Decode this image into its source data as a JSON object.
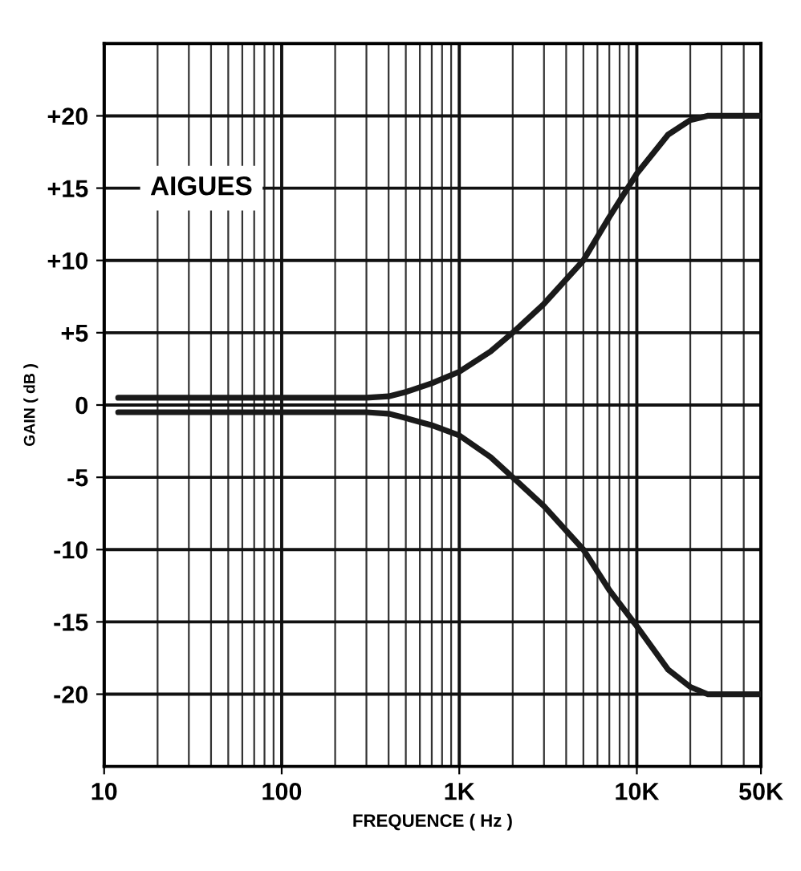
{
  "chart_data": {
    "type": "line",
    "xlabel": "FREQUENCE ( Hz )",
    "ylabel": "GAIN ( dB )",
    "annotations": [
      "AIGUES"
    ],
    "log": "x",
    "xlim": [
      10,
      50000
    ],
    "ylim": [
      -25,
      25
    ],
    "xticks": [
      10,
      100,
      {
        "value": 1000,
        "label": "1K"
      },
      {
        "value": 10000,
        "label": "10K"
      },
      {
        "value": 50000,
        "label": "50K"
      }
    ],
    "yticks": [
      {
        "value": 20,
        "label": "+20"
      },
      {
        "value": 15,
        "label": "+15"
      },
      {
        "value": 10,
        "label": "+10"
      },
      {
        "value": 5,
        "label": "+5"
      },
      0,
      -5,
      -10,
      -15,
      -20
    ],
    "grid": true,
    "marker": "none",
    "line_style": "solid",
    "series": [
      {
        "color": "#1a1a1a",
        "x": [
          12,
          50,
          100,
          200,
          300,
          400,
          500,
          700,
          1000,
          1500,
          2000,
          3000,
          5000,
          7000,
          10000,
          15000,
          20000,
          25000,
          30000,
          50000
        ],
        "values": [
          0.5,
          0.5,
          0.5,
          0.5,
          0.5,
          0.6,
          0.9,
          1.5,
          2.3,
          3.7,
          5,
          7,
          10,
          13,
          16,
          18.7,
          19.7,
          20,
          20,
          20
        ]
      },
      {
        "color": "#1a1a1a",
        "x": [
          12,
          50,
          100,
          200,
          300,
          400,
          500,
          700,
          1000,
          1500,
          2000,
          3000,
          5000,
          7000,
          10000,
          15000,
          20000,
          25000,
          30000,
          50000
        ],
        "values": [
          -0.5,
          -0.5,
          -0.5,
          -0.5,
          -0.5,
          -0.6,
          -0.9,
          -1.4,
          -2.1,
          -3.6,
          -5,
          -7,
          -10,
          -12.8,
          -15.3,
          -18.3,
          -19.5,
          -20,
          -20,
          -20
        ]
      }
    ]
  }
}
